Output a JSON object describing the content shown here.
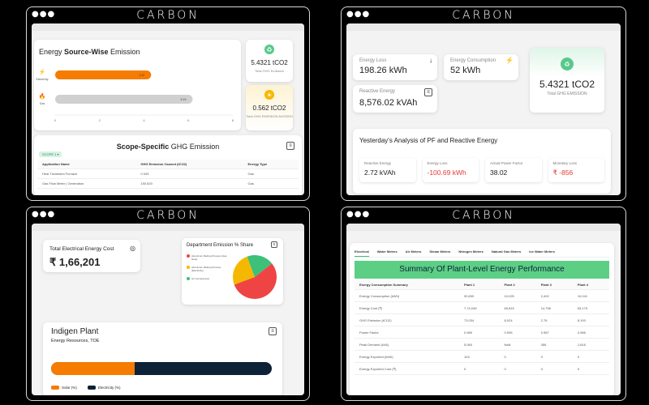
{
  "brand": "CARBON",
  "colors": {
    "orange": "#f57c00",
    "navy": "#0d2137",
    "green": "#58c98b",
    "red": "#e53935",
    "yellow": "#f5b800"
  },
  "panel1": {
    "chart_data": {
      "type": "bar",
      "title": "Energy Source-Wise Emission",
      "categories": [
        "Electricity",
        "Gas"
      ],
      "values": [
        4.32,
        6.19
      ],
      "value_labels": [
        "4.32",
        "6.19"
      ],
      "xticks": [
        "0",
        "2",
        "4",
        "6",
        "8"
      ],
      "xlim": [
        0,
        8
      ]
    },
    "title_a": "Energy ",
    "title_b": "Source-Wise",
    "title_c": " Emission",
    "stat1_value": "5.4321 tCO2",
    "stat1_label": "Total GHG Emission",
    "stat2_value": "0.562 tCO2",
    "stat2_label": "Total GHG EMISSION AVOIDED",
    "scope_title_a": "Scope-Specific",
    "scope_title_b": " GHG Emission",
    "filter_label": "SCOPE 1",
    "table_headers": [
      "Application Name",
      "GHG Emission Caused (tCO2)",
      "Energy Type"
    ],
    "table_rows": [
      [
        "Heat Treatment Furnace",
        "0.343",
        "Gas"
      ],
      [
        "Gas Flow Meter | Generation",
        "150.620",
        "Gas"
      ]
    ]
  },
  "panel2": {
    "energy_loss_label": "Energy Loss",
    "energy_loss_value": "198.26 kWh",
    "energy_consumption_label": "Energy Consumption",
    "energy_consumption_value": "52 kWh",
    "reactive_energy_label": "Reactive Energy",
    "reactive_energy_value": "8,576.02 kVAh",
    "total_value": "5.4321 tCO2",
    "total_label": "Total GHG EMISSION",
    "analysis_title": "Yesterday's Analysis of PF and Reactive Energy",
    "metrics": [
      {
        "label": "Reactive Energy",
        "value": "2.72 kVAh",
        "color": "#222"
      },
      {
        "label": "Energy Loss",
        "value": "-100.69 kWh",
        "color": "#e53935"
      },
      {
        "label": "Actual Power Factor",
        "value": "38.02",
        "color": "#222"
      },
      {
        "label": "Monetary Loss",
        "value": "₹ -856",
        "color": "#e53935"
      }
    ]
  },
  "panel3": {
    "cost_label": "Total Electrical Energy Cost",
    "cost_value": "₹ 1,66,201",
    "dept_title": "Department Emission % Share",
    "chart_data": {
      "type": "pie",
      "title": "Department Emission % Share",
      "slices": [
        {
          "name": "Aluminium Melting Process (Gas Dept)",
          "value": 55,
          "color": "#ef4444"
        },
        {
          "name": "Aluminium Melting Process (Electricity)",
          "value": 25,
          "color": "#f5b800"
        },
        {
          "name": "Air Compression",
          "value": 20,
          "color": "#3cc07a"
        }
      ]
    },
    "plant_title": "Indigen Plant",
    "plant_subtitle": "Energy Resources, TOE",
    "bar": {
      "solar_fraction": 0.38
    },
    "legend_solar": "Solar (%)",
    "legend_electricity": "Electricity (%)"
  },
  "panel4": {
    "tabs": [
      "Electrical",
      "Water Meters",
      "Air Meters",
      "Steam Meters",
      "Nitrogen Meters",
      "Natural Gas Meters",
      "Ice Water Meters"
    ],
    "active_tab": 0,
    "summary_title": "Summary Of Plant-Level Energy Performance",
    "headers": [
      "Energy Consumption Summary",
      "Plant 1",
      "Plant 2",
      "Plant 3",
      "Plant 4"
    ],
    "rows": [
      [
        "Energy Consumption (kWh)",
        "90,830",
        "10,025",
        "2,402",
        "10,041"
      ],
      [
        "Energy Cost (₹)",
        "7,74,046",
        "65,815",
        "14,756",
        "63,175"
      ],
      [
        "GHG Emission (tCO2)",
        "73.034",
        "8.024",
        "2.76",
        "8.100"
      ],
      [
        "Power Factor",
        "0.989",
        "0.995",
        "0.987",
        "0.986"
      ],
      [
        "Peak Demand (kVA)",
        "5,060",
        "NaN",
        "456",
        "1,816"
      ],
      [
        "Energy Exported (kWh)",
        "103",
        "0",
        "0",
        "0"
      ],
      [
        "Energy Exported Cost (₹)",
        "0",
        "0",
        "0",
        "0"
      ]
    ]
  }
}
